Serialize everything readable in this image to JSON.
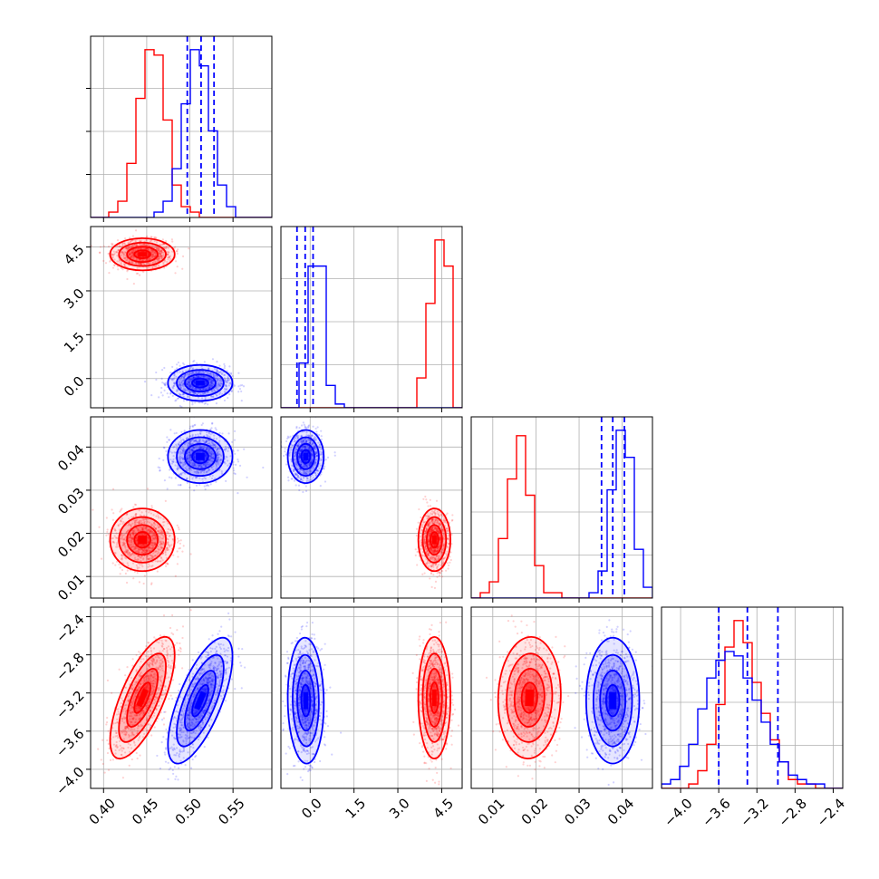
{
  "chart_data": {
    "type": "corner",
    "parameters": [
      {
        "ticks": [
          0.4,
          0.45,
          0.5,
          0.55
        ],
        "tick_labels": [
          "0.40",
          "0.45",
          "0.50",
          "0.55"
        ],
        "range": [
          0.385,
          0.595
        ]
      },
      {
        "ticks": [
          0.0,
          1.5,
          3.0,
          4.5
        ],
        "tick_labels": [
          "0.0",
          "1.5",
          "3.0",
          "4.5"
        ],
        "range": [
          -1.0,
          5.2
        ]
      },
      {
        "ticks": [
          0.01,
          0.02,
          0.03,
          0.04
        ],
        "tick_labels": [
          "0.01",
          "0.02",
          "0.03",
          "0.04"
        ],
        "range": [
          0.005,
          0.047
        ]
      },
      {
        "ticks": [
          -4.0,
          -3.6,
          -3.2,
          -2.8,
          -2.4
        ],
        "tick_labels": [
          "−4.0",
          "−3.6",
          "−3.2",
          "−2.8",
          "−2.4"
        ],
        "range": [
          -4.2,
          -2.3
        ]
      }
    ],
    "series": [
      {
        "color": "#ff0000",
        "means": [
          0.445,
          4.25,
          0.0185,
          -3.25
        ],
        "sds": [
          0.017,
          0.25,
          0.0033,
          0.29
        ],
        "correlations": [
          [
            0,
            3,
            0.7
          ],
          [
            2,
            3,
            0.05
          ]
        ]
      },
      {
        "color": "#0000ff",
        "means": [
          0.512,
          -0.15,
          0.0378,
          -3.28
        ],
        "sds": [
          0.017,
          0.28,
          0.0028,
          0.3
        ],
        "correlations": [
          [
            0,
            3,
            0.7
          ],
          [
            1,
            3,
            -0.05
          ]
        ]
      }
    ],
    "quantile_lines": {
      "color": "#0000ff",
      "values": [
        [
          0.497,
          0.513,
          0.528
        ],
        [
          -0.45,
          -0.17,
          0.1
        ],
        [
          0.0352,
          0.0378,
          0.0405
        ],
        [
          -3.6,
          -3.3,
          -2.98
        ]
      ]
    },
    "histograms": [
      {
        "red": [
          0,
          0,
          1,
          3,
          10,
          22,
          31,
          30,
          18,
          6,
          2,
          1,
          0,
          0,
          0,
          0,
          0,
          0,
          0,
          0
        ],
        "blue": [
          0,
          0,
          0,
          0,
          0,
          0,
          0,
          1,
          3,
          9,
          21,
          31,
          28,
          16,
          6,
          2,
          0,
          0,
          0,
          0
        ]
      },
      {
        "red": [
          0,
          0,
          0,
          0,
          0,
          0,
          0,
          0,
          0,
          0,
          0,
          0,
          0,
          0,
          0,
          8,
          28,
          45,
          38,
          0
        ],
        "blue": [
          0,
          0,
          12,
          38,
          38,
          6,
          1,
          0,
          0,
          0,
          0,
          0,
          0,
          0,
          0,
          0,
          0,
          0,
          0,
          0
        ]
      },
      {
        "red": [
          0,
          1,
          3,
          11,
          22,
          30,
          19,
          6,
          1,
          1,
          0,
          0,
          0,
          0,
          0,
          0,
          0,
          0,
          0,
          0
        ],
        "blue": [
          0,
          0,
          0,
          0,
          0,
          0,
          0,
          0,
          0,
          0,
          0,
          0,
          0,
          1,
          5,
          20,
          31,
          26,
          9,
          2
        ]
      },
      {
        "red": [
          0,
          0,
          0,
          1,
          4,
          10,
          19,
          32,
          38,
          33,
          24,
          17,
          11,
          6,
          2,
          1,
          1,
          0,
          0,
          0
        ],
        "blue": [
          1,
          2,
          5,
          10,
          18,
          25,
          29,
          31,
          30,
          25,
          20,
          15,
          10,
          6,
          3,
          2,
          1,
          1,
          0,
          0
        ]
      }
    ],
    "grid": true,
    "legend": "none"
  }
}
